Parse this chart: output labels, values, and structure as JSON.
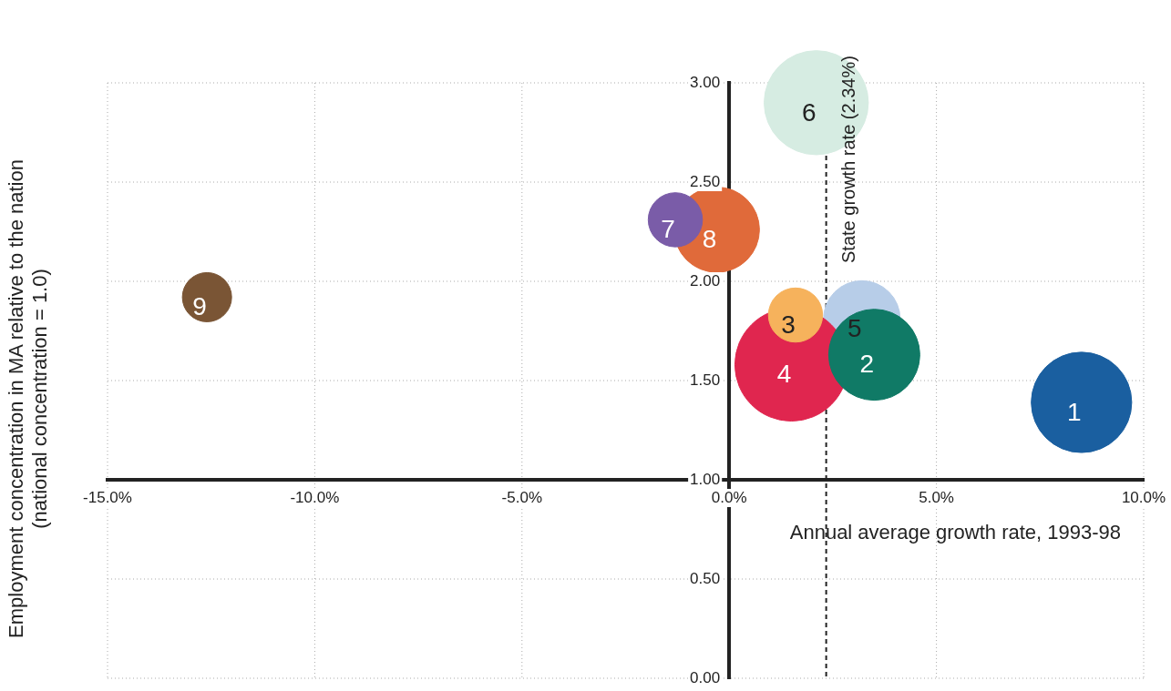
{
  "chart_data": {
    "type": "bubble",
    "xlabel": "Annual average growth rate, 1993-98",
    "ylabel": "Employment concentration in MA relative to the nation\n(national concentration = 1.0)",
    "xlim": [
      -15,
      10
    ],
    "xticks": [
      {
        "value": -15,
        "label": "-15.0%"
      },
      {
        "value": -10,
        "label": "-10.0%"
      },
      {
        "value": -5,
        "label": "-5.0%"
      },
      {
        "value": 0,
        "label": "0.0%"
      },
      {
        "value": 5,
        "label": "5.0%"
      },
      {
        "value": 10,
        "label": "10.0%"
      }
    ],
    "ylim": [
      0,
      3
    ],
    "yticks": [
      {
        "value": 0,
        "label": "0.00"
      },
      {
        "value": 0.5,
        "label": "0.50"
      },
      {
        "value": 1,
        "label": "1.00"
      },
      {
        "value": 1.5,
        "label": "1.50"
      },
      {
        "value": 2,
        "label": "2.00"
      },
      {
        "value": 2.5,
        "label": "2.50"
      },
      {
        "value": 3,
        "label": "3.00"
      }
    ],
    "grid": true,
    "legend": false,
    "ref_lines": [
      {
        "axis": "x",
        "value": 2.34,
        "label": "State growth rate (2.34%)",
        "line_style": "dashed",
        "color": "#222222"
      }
    ],
    "series": [
      {
        "name": "1",
        "color": "#1a5fa0",
        "x": [
          8.5
        ],
        "values": [
          1.39
        ],
        "sizes": [
          0.79
        ]
      },
      {
        "name": "2",
        "color": "#107a66",
        "x": [
          3.5
        ],
        "values": [
          1.63
        ],
        "sizes": [
          0.65
        ]
      },
      {
        "name": "3",
        "color": "#f6b25c",
        "x": [
          1.6
        ],
        "values": [
          1.83
        ],
        "sizes": [
          0.23
        ]
      },
      {
        "name": "4",
        "color": "#e0264f",
        "x": [
          1.5
        ],
        "values": [
          1.58
        ],
        "sizes": [
          1
        ]
      },
      {
        "name": "5",
        "color": "#b7cde8",
        "x": [
          3.2
        ],
        "values": [
          1.81
        ],
        "sizes": [
          0.46
        ]
      },
      {
        "name": "6",
        "color": "#d6ece2",
        "x": [
          2.1
        ],
        "values": [
          2.9
        ],
        "sizes": [
          0.85
        ]
      },
      {
        "name": "7",
        "color": "#7a5ca8",
        "x": [
          -1.3
        ],
        "values": [
          2.31
        ],
        "sizes": [
          0.23
        ]
      },
      {
        "name": "8",
        "color": "#e06a3a",
        "x": [
          -0.3
        ],
        "values": [
          2.26
        ],
        "sizes": [
          0.57
        ]
      },
      {
        "name": "9",
        "color": "#7a5535",
        "x": [
          -12.6
        ],
        "values": [
          1.92
        ],
        "sizes": [
          0.19
        ]
      }
    ]
  }
}
